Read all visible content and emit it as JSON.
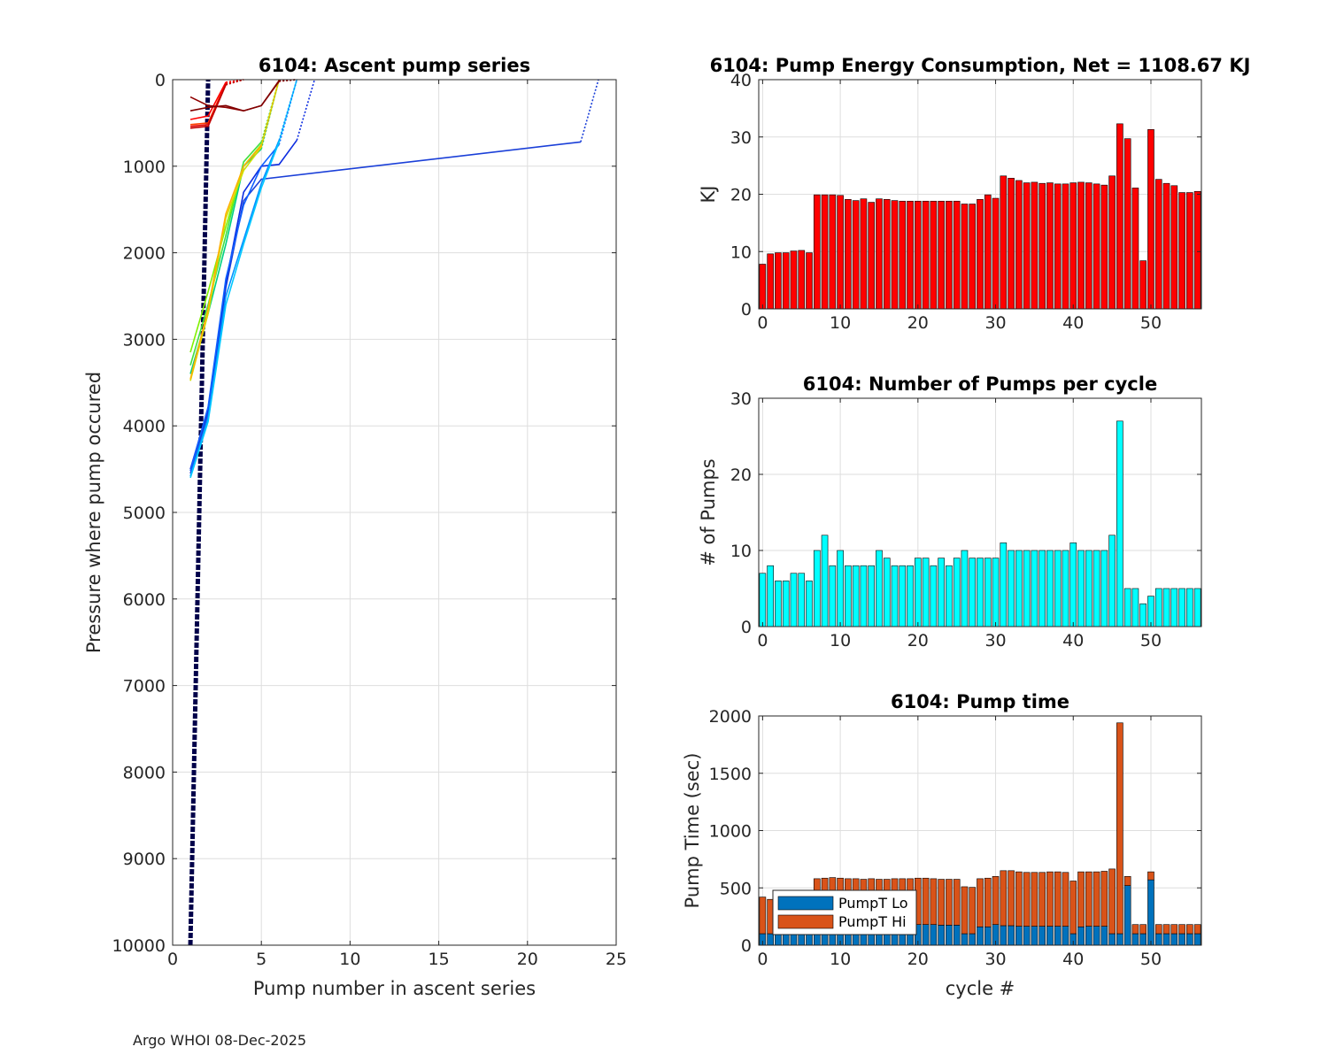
{
  "footer": "Argo WHOI 08-Dec-2025",
  "chart_data": [
    {
      "id": "ascent",
      "type": "line",
      "title": "6104: Ascent pump series",
      "xlabel": "Pump number in ascent series",
      "ylabel": "Pressure where pump occured",
      "xlim": [
        0,
        25
      ],
      "ylim": [
        0,
        10000
      ],
      "y_reversed": true,
      "grid": true,
      "xticks": [
        0,
        5,
        10,
        15,
        20,
        25
      ],
      "yticks": [
        0,
        1000,
        2000,
        3000,
        4000,
        5000,
        6000,
        7000,
        8000,
        9000,
        10000
      ],
      "series": [
        {
          "color": "#1a3fd8",
          "x": [
            1,
            2,
            3,
            4,
            5,
            23,
            24
          ],
          "y": [
            4550,
            3850,
            2400,
            1400,
            1150,
            720,
            0
          ]
        },
        {
          "color": "#0b2be0",
          "x": [
            1,
            2,
            3,
            4,
            5,
            6,
            7,
            8
          ],
          "y": [
            4500,
            3800,
            2350,
            1300,
            1000,
            980,
            700,
            0
          ]
        },
        {
          "color": "#1060ff",
          "x": [
            1,
            2,
            3,
            4,
            5,
            6,
            7
          ],
          "y": [
            4520,
            3780,
            2300,
            1450,
            1000,
            750,
            0
          ]
        },
        {
          "color": "#0090ff",
          "x": [
            1,
            2,
            3,
            4,
            5,
            6,
            7
          ],
          "y": [
            4580,
            3900,
            2500,
            1850,
            1200,
            700,
            0
          ]
        },
        {
          "color": "#00c8ff",
          "x": [
            1,
            2,
            3,
            4,
            5,
            6,
            7
          ],
          "y": [
            4600,
            3950,
            2600,
            1900,
            1250,
            720,
            0
          ]
        },
        {
          "color": "#00d080",
          "x": [
            1,
            2,
            3,
            4,
            5,
            6
          ],
          "y": [
            3400,
            2700,
            1900,
            1000,
            800,
            0
          ]
        },
        {
          "color": "#40e040",
          "x": [
            1,
            2,
            3,
            4,
            5,
            6
          ],
          "y": [
            3300,
            2600,
            1800,
            950,
            720,
            0
          ]
        },
        {
          "color": "#80f000",
          "x": [
            1,
            2,
            3,
            4,
            5,
            6
          ],
          "y": [
            3150,
            2450,
            1700,
            1000,
            750,
            0
          ]
        },
        {
          "color": "#d0e000",
          "x": [
            1,
            2,
            3,
            4,
            5,
            6
          ],
          "y": [
            3480,
            2700,
            1600,
            1050,
            780,
            0
          ]
        },
        {
          "color": "#ffb000",
          "x": [
            1,
            2,
            3,
            4,
            5,
            6
          ],
          "y": [
            3460,
            2650,
            1550,
            1000,
            760,
            0
          ]
        },
        {
          "color": "#ff4000",
          "x": [
            1,
            2,
            3,
            4
          ],
          "y": [
            520,
            500,
            40,
            0
          ]
        },
        {
          "color": "#ff0000",
          "x": [
            1,
            2,
            3,
            4
          ],
          "y": [
            460,
            420,
            30,
            0
          ]
        },
        {
          "color": "#e00000",
          "x": [
            1,
            2,
            3,
            4
          ],
          "y": [
            540,
            520,
            50,
            0
          ]
        },
        {
          "color": "#c00000",
          "x": [
            1,
            2,
            3,
            4
          ],
          "y": [
            560,
            540,
            60,
            0
          ]
        },
        {
          "color": "#900000",
          "x": [
            1,
            2,
            3,
            4,
            5,
            6,
            7
          ],
          "y": [
            200,
            300,
            320,
            360,
            300,
            20,
            0
          ]
        },
        {
          "color": "#800000",
          "x": [
            1,
            2,
            3,
            4,
            5,
            6,
            7
          ],
          "y": [
            360,
            320,
            300,
            360,
            300,
            10,
            0
          ]
        }
      ],
      "threshold_lines": [
        {
          "color": "#00004a",
          "x": [
            1,
            2
          ],
          "y": [
            10000,
            0
          ]
        }
      ]
    },
    {
      "id": "energy",
      "type": "bar",
      "title": "6104: Pump Energy Consumption,  Net = 1108.67 KJ",
      "xlabel": "",
      "ylabel": "KJ",
      "xlim": [
        -0.5,
        56.5
      ],
      "ylim": [
        0,
        40
      ],
      "grid": true,
      "color": "#ff0000",
      "xticks": [
        0,
        10,
        20,
        30,
        40,
        50
      ],
      "yticks": [
        0,
        10,
        20,
        30,
        40
      ],
      "categories": [
        0,
        1,
        2,
        3,
        4,
        5,
        6,
        7,
        8,
        9,
        10,
        11,
        12,
        13,
        14,
        15,
        16,
        17,
        18,
        19,
        20,
        21,
        22,
        23,
        24,
        25,
        26,
        27,
        28,
        29,
        30,
        31,
        32,
        33,
        34,
        35,
        36,
        37,
        38,
        39,
        40,
        41,
        42,
        43,
        44,
        45,
        46,
        47,
        48,
        49,
        50,
        51,
        52,
        53,
        54,
        55,
        56
      ],
      "values": [
        7.8,
        9.6,
        9.8,
        9.8,
        10.1,
        10.2,
        9.8,
        19.9,
        19.9,
        19.9,
        19.8,
        19.1,
        18.9,
        19.2,
        18.6,
        19.2,
        19.1,
        18.9,
        18.8,
        18.8,
        18.8,
        18.8,
        18.8,
        18.8,
        18.8,
        18.8,
        18.3,
        18.3,
        19.1,
        19.9,
        19.3,
        23.2,
        22.8,
        22.4,
        22.0,
        22.1,
        21.9,
        22.0,
        21.8,
        21.8,
        22.0,
        22.1,
        22.0,
        21.8,
        21.6,
        23.2,
        32.3,
        29.7,
        21.1,
        8.4,
        31.3,
        22.6,
        21.9,
        21.5,
        20.3,
        20.3,
        20.5
      ]
    },
    {
      "id": "pumps",
      "type": "bar",
      "title": "6104: Number of Pumps per cycle",
      "xlabel": "",
      "ylabel": "# of Pumps",
      "xlim": [
        -0.5,
        56.5
      ],
      "ylim": [
        0,
        30
      ],
      "grid": true,
      "color": "#00ffff",
      "xticks": [
        0,
        10,
        20,
        30,
        40,
        50
      ],
      "yticks": [
        0,
        10,
        20,
        30
      ],
      "categories": [
        0,
        1,
        2,
        3,
        4,
        5,
        6,
        7,
        8,
        9,
        10,
        11,
        12,
        13,
        14,
        15,
        16,
        17,
        18,
        19,
        20,
        21,
        22,
        23,
        24,
        25,
        26,
        27,
        28,
        29,
        30,
        31,
        32,
        33,
        34,
        35,
        36,
        37,
        38,
        39,
        40,
        41,
        42,
        43,
        44,
        45,
        46,
        47,
        48,
        49,
        50,
        51,
        52,
        53,
        54,
        55,
        56
      ],
      "values": [
        7,
        8,
        6,
        6,
        7,
        7,
        6,
        10,
        12,
        8,
        10,
        8,
        8,
        8,
        8,
        10,
        9,
        8,
        8,
        8,
        9,
        9,
        8,
        9,
        8,
        9,
        10,
        9,
        9,
        9,
        9,
        11,
        10,
        10,
        10,
        10,
        10,
        10,
        10,
        10,
        11,
        10,
        10,
        10,
        10,
        12,
        27,
        5,
        5,
        3,
        4,
        5,
        5,
        5,
        5,
        5,
        5
      ]
    },
    {
      "id": "pumptime",
      "type": "bar",
      "stacked": true,
      "title": "6104: Pump time",
      "xlabel": "cycle #",
      "ylabel": "Pump Time (sec)",
      "xlim": [
        -0.5,
        56.5
      ],
      "ylim": [
        0,
        2000
      ],
      "grid": true,
      "legend": "bottom-left",
      "xticks": [
        0,
        10,
        20,
        30,
        40,
        50
      ],
      "yticks": [
        0,
        500,
        1000,
        1500,
        2000
      ],
      "categories": [
        0,
        1,
        2,
        3,
        4,
        5,
        6,
        7,
        8,
        9,
        10,
        11,
        12,
        13,
        14,
        15,
        16,
        17,
        18,
        19,
        20,
        21,
        22,
        23,
        24,
        25,
        26,
        27,
        28,
        29,
        30,
        31,
        32,
        33,
        34,
        35,
        36,
        37,
        38,
        39,
        40,
        41,
        42,
        43,
        44,
        45,
        46,
        47,
        48,
        49,
        50,
        51,
        52,
        53,
        54,
        55,
        56
      ],
      "series": [
        {
          "name": "PumpT Lo",
          "color": "#0072bd",
          "values": [
            100,
            100,
            100,
            100,
            100,
            100,
            100,
            100,
            100,
            100,
            100,
            100,
            100,
            100,
            100,
            100,
            100,
            120,
            160,
            170,
            180,
            180,
            180,
            175,
            175,
            175,
            100,
            100,
            160,
            160,
            180,
            170,
            170,
            165,
            165,
            165,
            165,
            165,
            165,
            165,
            100,
            160,
            165,
            165,
            165,
            100,
            100,
            520,
            100,
            100,
            570,
            100,
            100,
            100,
            100,
            100,
            100
          ]
        },
        {
          "name": "PumpT Hi",
          "color": "#d95319",
          "values": [
            320,
            300,
            300,
            300,
            300,
            300,
            300,
            480,
            485,
            490,
            485,
            480,
            480,
            475,
            480,
            475,
            475,
            460,
            420,
            410,
            405,
            405,
            400,
            400,
            400,
            400,
            410,
            405,
            420,
            425,
            420,
            480,
            480,
            475,
            470,
            470,
            470,
            475,
            475,
            470,
            460,
            480,
            475,
            475,
            480,
            565,
            1840,
            80,
            80,
            80,
            70,
            80,
            80,
            80,
            80,
            80,
            80
          ]
        }
      ]
    }
  ]
}
